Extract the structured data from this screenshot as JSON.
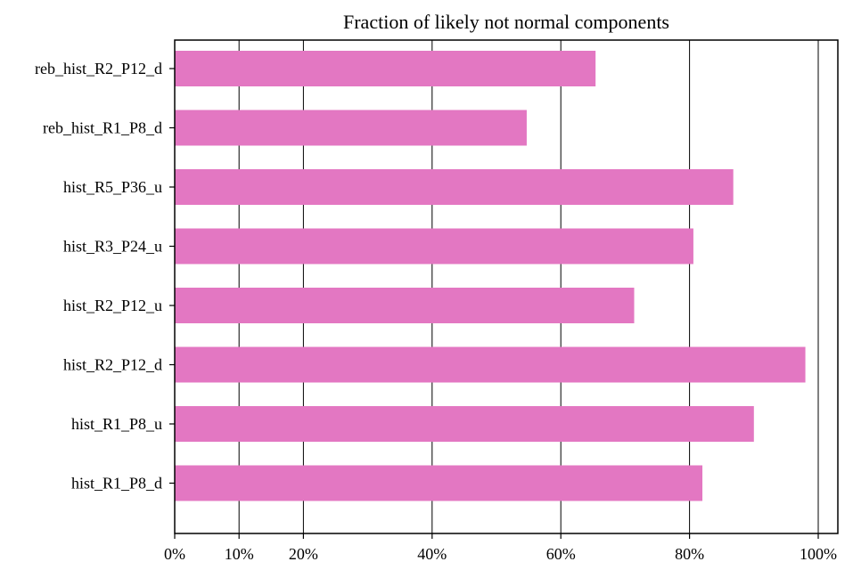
{
  "chart_data": {
    "type": "bar",
    "orientation": "horizontal",
    "title": "Fraction of likely not normal components",
    "xlabel": "",
    "ylabel": "",
    "bar_color": "#e377c2",
    "grid": "vertical",
    "xlim": [
      0,
      1.03
    ],
    "xticks": [
      {
        "value": 0.0,
        "label": "0%"
      },
      {
        "value": 0.1,
        "label": "10%"
      },
      {
        "value": 0.2,
        "label": "20%"
      },
      {
        "value": 0.4,
        "label": "40%"
      },
      {
        "value": 0.6,
        "label": "60%"
      },
      {
        "value": 0.8,
        "label": "80%"
      },
      {
        "value": 1.0,
        "label": "100%"
      }
    ],
    "categories": [
      "hist_R1_P8_d",
      "hist_R1_P8_u",
      "hist_R2_P12_d",
      "hist_R2_P12_u",
      "hist_R3_P24_u",
      "hist_R5_P36_u",
      "reb_hist_R1_P8_d",
      "reb_hist_R2_P12_d"
    ],
    "values": [
      0.82,
      0.9,
      0.98,
      0.714,
      0.806,
      0.868,
      0.547,
      0.654
    ]
  }
}
